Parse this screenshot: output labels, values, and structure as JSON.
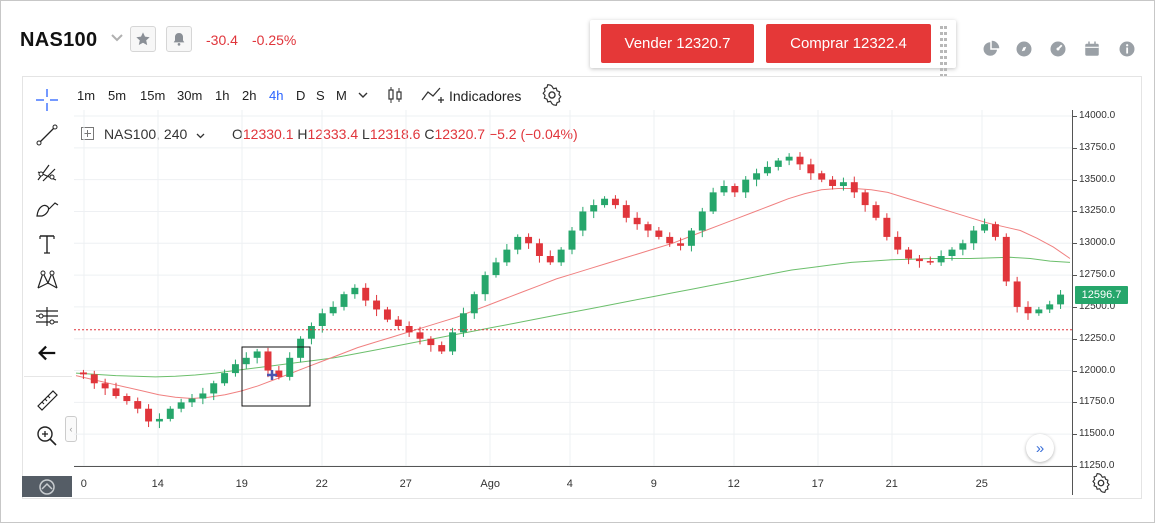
{
  "header": {
    "symbol": "NAS100",
    "change_abs": "-30.4",
    "change_pct": "-0.25%"
  },
  "trade": {
    "sell_label": "Vender 12320.7",
    "buy_label": "Comprar 12322.4"
  },
  "right_icons": [
    "pie-chart-icon",
    "compass-icon",
    "gauge-icon",
    "calendar-icon",
    "info-icon"
  ],
  "toolbar": {
    "timeframes": [
      "1m",
      "5m",
      "15m",
      "30m",
      "1h",
      "2h",
      "4h",
      "D",
      "S",
      "M"
    ],
    "active_timeframe": "4h",
    "indicators_label": "Indicadores"
  },
  "left_tools": [
    "crosshair-icon",
    "trend-line-icon",
    "pitchfork-icon",
    "brush-icon",
    "text-icon",
    "pattern-icon",
    "prediction-icon",
    "back-arrow-icon",
    "ruler-icon",
    "zoom-in-icon"
  ],
  "legend": {
    "symbol_interval": "NAS100, 240",
    "o_label": "O",
    "o_value": "12330.1",
    "h_label": "H",
    "h_value": "12333.4",
    "l_label": "L",
    "l_value": "12318.6",
    "c_label": "C",
    "c_value": "12320.7",
    "change": "−5.2 (−0.04%)"
  },
  "price_axis": {
    "ticks": [
      "14000.0",
      "13750.0",
      "13500.0",
      "13250.0",
      "13000.0",
      "12750.0",
      "12500.0",
      "12250.0",
      "12000.0",
      "11750.0",
      "11500.0",
      "11250.0"
    ],
    "current_price": "12596.7"
  },
  "time_axis": {
    "labels": [
      "0",
      "14",
      "19",
      "22",
      "27",
      "Ago",
      "4",
      "9",
      "12",
      "17",
      "21",
      "25"
    ]
  },
  "colors": {
    "sell": "#e53838",
    "buy": "#e53838",
    "bull": "#26a66b",
    "bear": "#e0353b",
    "ma_fast": "#f08080",
    "ma_slow": "#6cbf6c",
    "active": "#2962ff"
  },
  "chart_data": {
    "type": "candlestick",
    "symbol": "NAS100",
    "interval": "240",
    "ylim": [
      11250,
      14000
    ],
    "x_labels": [
      "0",
      "14",
      "19",
      "22",
      "27",
      "Ago",
      "4",
      "9",
      "12",
      "17",
      "21",
      "25"
    ],
    "last_price": 12596.7,
    "bid_line": 12320.7,
    "close_path": [
      11970,
      11900,
      11860,
      11800,
      11760,
      11700,
      11600,
      11620,
      11700,
      11750,
      11780,
      11820,
      11900,
      11980,
      12050,
      12100,
      12150,
      12000,
      11950,
      12100,
      12250,
      12350,
      12450,
      12500,
      12600,
      12650,
      12550,
      12480,
      12400,
      12350,
      12300,
      12250,
      12200,
      12150,
      12300,
      12450,
      12600,
      12750,
      12850,
      12950,
      13050,
      13000,
      12900,
      12850,
      12950,
      13100,
      13250,
      13300,
      13350,
      13300,
      13200,
      13150,
      13100,
      13050,
      13000,
      12980,
      13100,
      13250,
      13400,
      13450,
      13400,
      13500,
      13550,
      13600,
      13650,
      13680,
      13620,
      13550,
      13500,
      13450,
      13480,
      13400,
      13300,
      13200,
      13050,
      12950,
      12880,
      12860,
      12850,
      12900,
      12950,
      13000,
      13100,
      13150,
      13050,
      12700,
      12500,
      12450,
      12480,
      12520,
      12596.7
    ],
    "ma_fast": [
      11960,
      11930,
      11900,
      11870,
      11840,
      11810,
      11790,
      11780,
      11790,
      11810,
      11840,
      11880,
      11930,
      11980,
      12030,
      12080,
      12130,
      12180,
      12220,
      12260,
      12300,
      12340,
      12380,
      12420,
      12470,
      12520,
      12570,
      12620,
      12670,
      12720,
      12760,
      12800,
      12840,
      12880,
      12920,
      12960,
      13000,
      13050,
      13100,
      13150,
      13200,
      13250,
      13300,
      13350,
      13390,
      13420,
      13430,
      13430,
      13420,
      13400,
      13360,
      13320,
      13280,
      13240,
      13200,
      13160,
      13130,
      13100,
      13040,
      12970,
      12880
    ],
    "ma_slow": [
      11980,
      11970,
      11960,
      11955,
      11950,
      11955,
      11965,
      11980,
      12000,
      12020,
      12040,
      12060,
      12080,
      12100,
      12130,
      12160,
      12190,
      12220,
      12250,
      12280,
      12310,
      12340,
      12370,
      12400,
      12430,
      12460,
      12490,
      12520,
      12550,
      12580,
      12610,
      12640,
      12670,
      12700,
      12730,
      12760,
      12790,
      12810,
      12830,
      12850,
      12860,
      12870,
      12875,
      12880,
      12880,
      12880,
      12885,
      12890,
      12880,
      12860,
      12850
    ]
  }
}
